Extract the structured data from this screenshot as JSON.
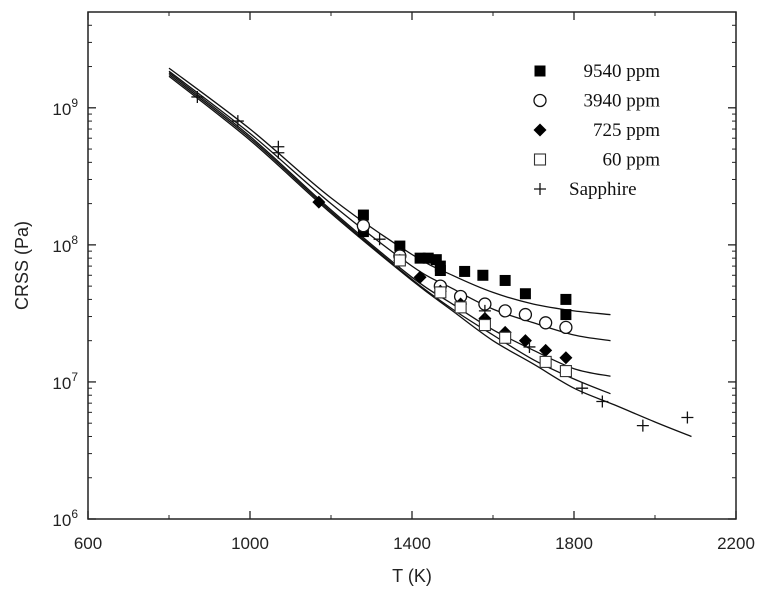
{
  "chart_data": {
    "type": "scatter",
    "title": "",
    "xlabel": "T (K)",
    "ylabel": "CRSS (Pa)",
    "xlim": [
      600,
      2200
    ],
    "ylim": [
      1000000,
      5000000000
    ],
    "yscale": "log",
    "grid": false,
    "legend_position": "top-right",
    "x_ticks": [
      600,
      1000,
      1400,
      1800,
      2200
    ],
    "x_tick_labels": [
      "600",
      "1000",
      "1400",
      "1800",
      "2200"
    ],
    "y_ticks": [
      1000000,
      10000000,
      100000000,
      1000000000
    ],
    "y_tick_labels": [
      {
        "base": "10",
        "exp": "6"
      },
      {
        "base": "10",
        "exp": "7"
      },
      {
        "base": "10",
        "exp": "8"
      },
      {
        "base": "10",
        "exp": "9"
      }
    ],
    "series": [
      {
        "name": "9540 ppm",
        "marker": "filled-square",
        "points": [
          [
            1280,
            165000000
          ],
          [
            1280,
            125000000
          ],
          [
            1370,
            98000000
          ],
          [
            1420,
            80000000
          ],
          [
            1440,
            80000000
          ],
          [
            1460,
            78000000
          ],
          [
            1470,
            70000000
          ],
          [
            1470,
            65000000
          ],
          [
            1530,
            64000000
          ],
          [
            1575,
            60000000
          ],
          [
            1630,
            55000000
          ],
          [
            1680,
            44000000
          ],
          [
            1780,
            40000000
          ],
          [
            1780,
            31000000
          ]
        ]
      },
      {
        "name": "3940 ppm",
        "marker": "open-circle",
        "points": [
          [
            1280,
            138000000
          ],
          [
            1370,
            83000000
          ],
          [
            1470,
            50000000
          ],
          [
            1520,
            42000000
          ],
          [
            1580,
            37000000
          ],
          [
            1630,
            33000000
          ],
          [
            1680,
            31000000
          ],
          [
            1730,
            27000000
          ],
          [
            1780,
            25000000
          ]
        ]
      },
      {
        "name": "725 ppm",
        "marker": "filled-diamond",
        "points": [
          [
            1170,
            205000000
          ],
          [
            1370,
            77000000
          ],
          [
            1420,
            58000000
          ],
          [
            1470,
            46000000
          ],
          [
            1520,
            37000000
          ],
          [
            1580,
            29000000
          ],
          [
            1630,
            23000000
          ],
          [
            1680,
            20000000
          ],
          [
            1730,
            17000000
          ],
          [
            1780,
            15000000
          ]
        ]
      },
      {
        "name": "60 ppm",
        "marker": "open-square",
        "points": [
          [
            1370,
            77000000
          ],
          [
            1470,
            45000000
          ],
          [
            1520,
            35000000
          ],
          [
            1580,
            26000000
          ],
          [
            1630,
            21000000
          ],
          [
            1730,
            14000000
          ],
          [
            1780,
            12000000
          ]
        ]
      },
      {
        "name": "Sapphire",
        "marker": "plus",
        "points": [
          [
            870,
            1200000000
          ],
          [
            970,
            800000000
          ],
          [
            1070,
            520000000
          ],
          [
            1070,
            470000000
          ],
          [
            1320,
            110000000
          ],
          [
            1580,
            33000000
          ],
          [
            1690,
            18000000
          ],
          [
            1820,
            9000000
          ],
          [
            1870,
            7200000
          ],
          [
            1970,
            4800000
          ],
          [
            2080,
            5500000
          ]
        ]
      }
    ],
    "fit_curves": [
      {
        "points": [
          [
            800,
            1950000000
          ],
          [
            1000,
            700000000
          ],
          [
            1200,
            220000000
          ],
          [
            1400,
            85000000
          ],
          [
            1500,
            60000000
          ],
          [
            1600,
            45000000
          ],
          [
            1700,
            37000000
          ],
          [
            1800,
            33000000
          ],
          [
            1890,
            31000000
          ]
        ]
      },
      {
        "points": [
          [
            800,
            1850000000
          ],
          [
            1000,
            650000000
          ],
          [
            1200,
            200000000
          ],
          [
            1400,
            70000000
          ],
          [
            1500,
            48000000
          ],
          [
            1600,
            34000000
          ],
          [
            1700,
            27000000
          ],
          [
            1800,
            22000000
          ],
          [
            1890,
            20000000
          ]
        ]
      },
      {
        "points": [
          [
            800,
            1800000000
          ],
          [
            1000,
            620000000
          ],
          [
            1200,
            180000000
          ],
          [
            1400,
            58000000
          ],
          [
            1500,
            37000000
          ],
          [
            1600,
            24000000
          ],
          [
            1700,
            17000000
          ],
          [
            1800,
            12500000
          ],
          [
            1890,
            11000000
          ]
        ]
      },
      {
        "points": [
          [
            800,
            1750000000
          ],
          [
            1000,
            600000000
          ],
          [
            1200,
            175000000
          ],
          [
            1400,
            56000000
          ],
          [
            1500,
            34000000
          ],
          [
            1600,
            22000000
          ],
          [
            1700,
            14500000
          ],
          [
            1800,
            10500000
          ],
          [
            1890,
            8200000
          ]
        ]
      },
      {
        "points": [
          [
            800,
            1700000000
          ],
          [
            1000,
            580000000
          ],
          [
            1200,
            170000000
          ],
          [
            1400,
            55000000
          ],
          [
            1500,
            33000000
          ],
          [
            1600,
            20000000
          ],
          [
            1700,
            13500000
          ],
          [
            1800,
            9000000
          ],
          [
            1900,
            6800000
          ],
          [
            2000,
            5100000
          ],
          [
            2090,
            4000000
          ]
        ]
      }
    ]
  }
}
